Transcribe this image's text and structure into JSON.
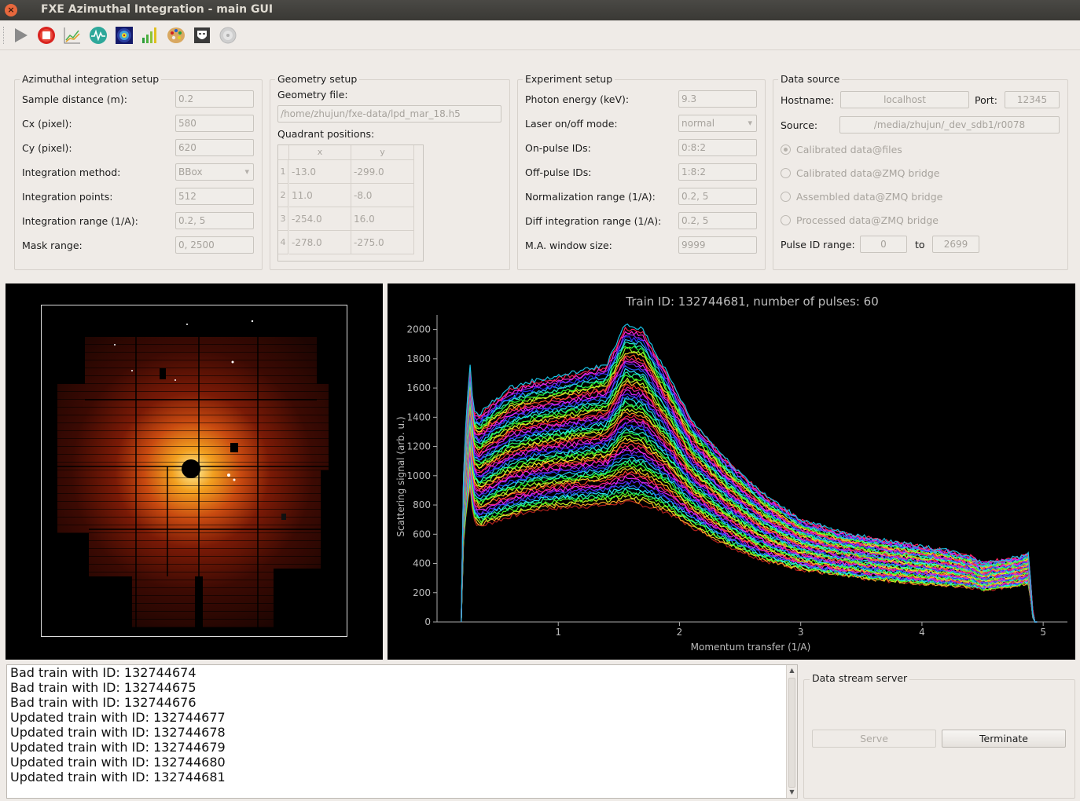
{
  "window": {
    "title": "FXE Azimuthal Integration - main GUI"
  },
  "toolbar": {
    "icons": [
      "play-icon",
      "stop-icon",
      "line-chart-icon",
      "waveform-icon",
      "diffraction-icon",
      "bar-chart-icon",
      "palette-icon",
      "mask-icon",
      "disc-icon"
    ]
  },
  "azimuthal": {
    "title": "Azimuthal integration setup",
    "rows": [
      {
        "label": "Sample distance (m):",
        "value": "0.2"
      },
      {
        "label": "Cx (pixel):",
        "value": "580"
      },
      {
        "label": "Cy (pixel):",
        "value": "620"
      },
      {
        "label": "Integration method:",
        "value": "BBox"
      },
      {
        "label": "Integration points:",
        "value": "512"
      },
      {
        "label": "Integration range (1/A):",
        "value": "0.2, 5"
      },
      {
        "label": "Mask range:",
        "value": "0, 2500"
      }
    ]
  },
  "geometry": {
    "title": "Geometry setup",
    "file_label": "Geometry file:",
    "file_value": "/home/zhujun/fxe-data/lpd_mar_18.h5",
    "quad_label": "Quadrant positions:",
    "col_x": "x",
    "col_y": "y",
    "rows": [
      {
        "n": "1",
        "x": "-13.0",
        "y": "-299.0"
      },
      {
        "n": "2",
        "x": "11.0",
        "y": "-8.0"
      },
      {
        "n": "3",
        "x": "-254.0",
        "y": "16.0"
      },
      {
        "n": "4",
        "x": "-278.0",
        "y": "-275.0"
      }
    ]
  },
  "experiment": {
    "title": "Experiment setup",
    "rows": [
      {
        "label": "Photon energy (keV):",
        "value": "9.3"
      },
      {
        "label": "Laser on/off mode:",
        "value": "normal"
      },
      {
        "label": "On-pulse IDs:",
        "value": "0:8:2"
      },
      {
        "label": "Off-pulse IDs:",
        "value": "1:8:2"
      },
      {
        "label": "Normalization range (1/A):",
        "value": "0.2, 5"
      },
      {
        "label": "Diff integration range (1/A):",
        "value": "0.2, 5"
      },
      {
        "label": "M.A. window size:",
        "value": "9999"
      }
    ]
  },
  "datasource": {
    "title": "Data source",
    "hostname_label": "Hostname:",
    "hostname_value": "localhost",
    "port_label": "Port:",
    "port_value": "12345",
    "source_label": "Source:",
    "source_value": "/media/zhujun/_dev_sdb1/r0078",
    "radios": [
      "Calibrated data@files",
      "Calibrated data@ZMQ bridge",
      "Assembled data@ZMQ bridge",
      "Processed data@ZMQ bridge"
    ],
    "pulse_label": "Pulse ID range:",
    "pulse_from": "0",
    "pulse_to_label": "to",
    "pulse_to": "2699"
  },
  "log": {
    "lines": [
      "Bad train with ID: 132744674",
      "Bad train with ID: 132744675",
      "Bad train with ID: 132744676",
      "Updated train with ID: 132744677",
      "Updated train with ID: 132744678",
      "Updated train with ID: 132744679",
      "Updated train with ID: 132744680",
      "Updated train with ID: 132744681"
    ]
  },
  "server": {
    "title": "Data stream server",
    "serve_label": "Serve",
    "terminate_label": "Terminate"
  },
  "chart_data": {
    "type": "line",
    "title": "Train ID: 132744681, number of pulses: 60",
    "xlabel": "Momentum transfer (1/A)",
    "ylabel": "Scattering signal (arb. u.)",
    "xlim": [
      0,
      5.2
    ],
    "ylim": [
      0,
      2100
    ],
    "xticks": [
      1,
      2,
      3,
      4,
      5
    ],
    "yticks": [
      0,
      200,
      400,
      600,
      800,
      1000,
      1200,
      1400,
      1600,
      1800,
      2000
    ],
    "series_count": 60,
    "envelope": {
      "x": [
        0.2,
        0.22,
        0.27,
        0.3,
        0.35,
        0.45,
        0.6,
        0.8,
        1.0,
        1.2,
        1.4,
        1.55,
        1.7,
        1.9,
        2.1,
        2.4,
        2.7,
        3.0,
        3.3,
        3.6,
        3.9,
        4.2,
        4.4,
        4.5,
        4.6,
        4.8,
        4.88,
        4.92,
        4.95
      ],
      "upper": [
        0,
        1100,
        1790,
        1450,
        1420,
        1500,
        1600,
        1650,
        1680,
        1720,
        1760,
        2030,
        2000,
        1700,
        1380,
        1100,
        870,
        700,
        620,
        570,
        530,
        490,
        450,
        400,
        420,
        440,
        470,
        0,
        0
      ],
      "lower": [
        0,
        600,
        950,
        700,
        650,
        680,
        720,
        760,
        780,
        790,
        800,
        820,
        800,
        750,
        650,
        520,
        420,
        360,
        320,
        290,
        270,
        250,
        240,
        220,
        230,
        250,
        260,
        0,
        0
      ]
    }
  }
}
